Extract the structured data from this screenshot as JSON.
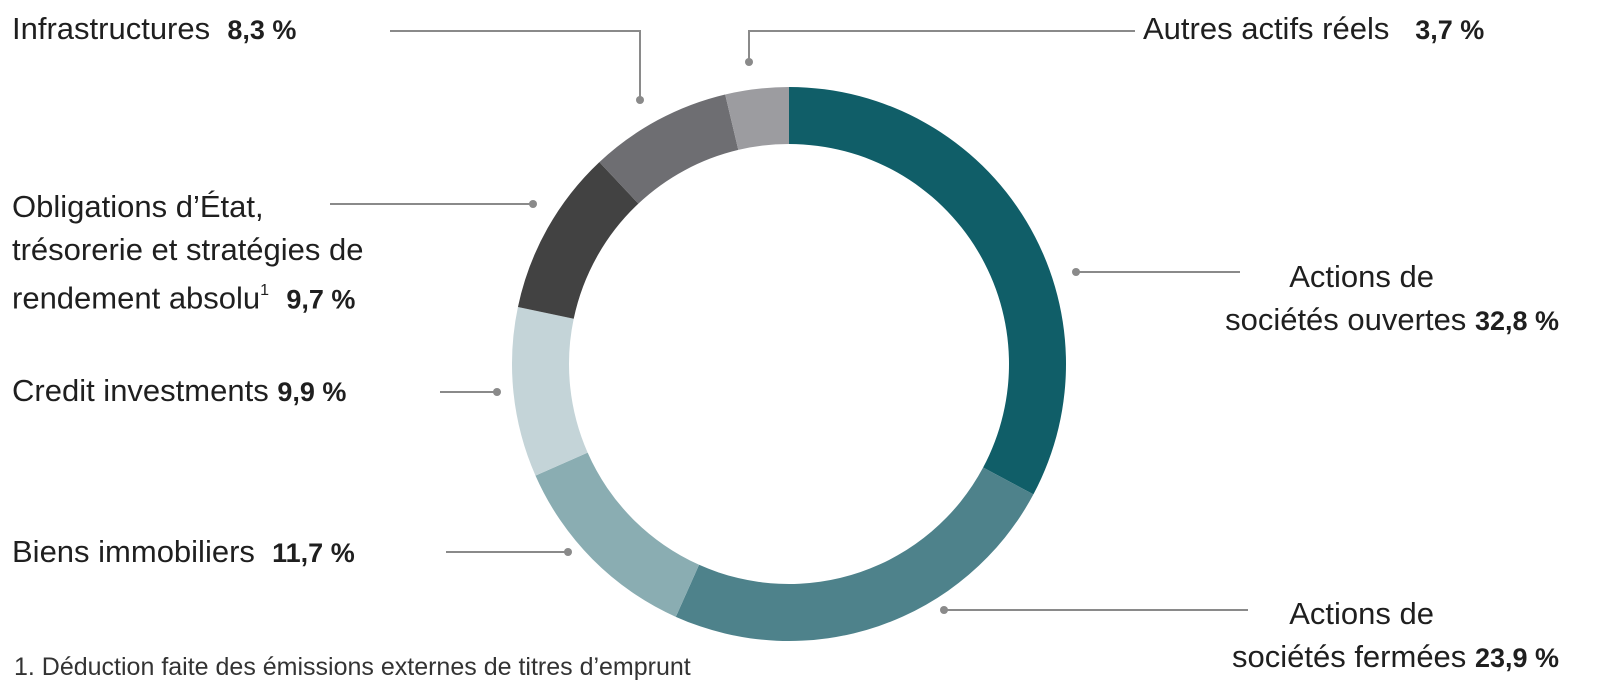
{
  "chart_data": {
    "type": "pie",
    "slices": [
      {
        "name": "Actions de sociétés ouvertes",
        "value": 32.8,
        "value_label": "32,8 %",
        "color": "#105e68"
      },
      {
        "name": "Actions de sociétés fermées",
        "value": 23.9,
        "value_label": "23,9 %",
        "color": "#4e828b"
      },
      {
        "name": "Biens immobiliers",
        "value": 11.7,
        "value_label": "11,7 %",
        "color": "#8aadb2"
      },
      {
        "name": "Credit investments",
        "value": 9.9,
        "value_label": "9,9 %",
        "color": "#c4d4d8"
      },
      {
        "name": "Obligations d’État, trésorerie et stratégies de rendement absolu",
        "value": 9.7,
        "value_label": "9,7 %",
        "color": "#424242"
      },
      {
        "name": "Infrastructures",
        "value": 8.3,
        "value_label": "8,3 %",
        "color": "#6e6e72"
      },
      {
        "name": "Autres actifs réels",
        "value": 3.7,
        "value_label": "3,7 %",
        "color": "#9c9ca0"
      }
    ],
    "donut": true,
    "leader_line_color": "#8a8a8a"
  },
  "labels": {
    "infra": {
      "name": "Infrastructures",
      "pct": "8,3 %"
    },
    "autres": {
      "name": "Autres actifs réels",
      "pct": "3,7 %"
    },
    "oblig": {
      "line1": "Obligations d’État,",
      "line2": "trésorerie et stratégies de",
      "line3": "rendement absolu",
      "sup": "1",
      "pct": "9,7 %"
    },
    "credit": {
      "name": "Credit investments",
      "pct": "9,9 %"
    },
    "biens": {
      "name": "Biens immobiliers",
      "pct": "11,7 %"
    },
    "ouvertes": {
      "line1": "Actions de",
      "line2": "sociétés ouvertes",
      "pct": "32,8 %"
    },
    "fermees": {
      "line1": "Actions de",
      "line2": "sociétés fermées",
      "pct": "23,9 %"
    }
  },
  "footnote": "1.  Déduction faite des émissions externes de titres d’emprunt"
}
